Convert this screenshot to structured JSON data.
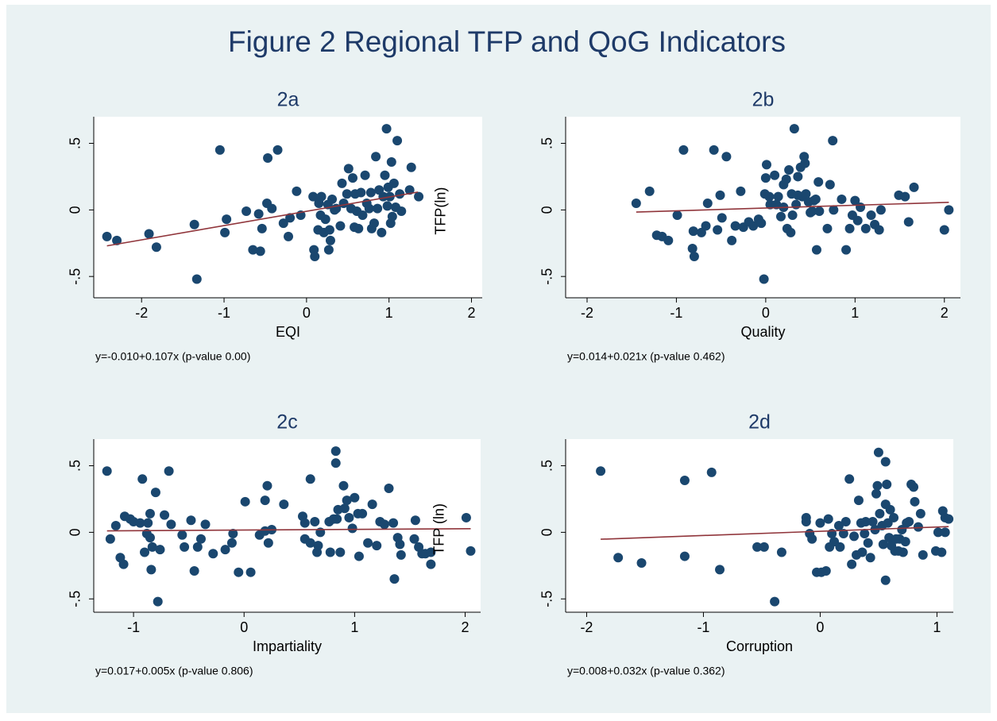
{
  "title": "Figure 2 Regional TFP and QoG Indicators",
  "chart_data": [
    {
      "type": "scatter",
      "title": "2a",
      "xlabel": "EQI",
      "ylabel": "TFP(ln)",
      "note": "y=-0.010+0.107x  (p-value 0.00)",
      "color": "#1a476f",
      "line_color": "#90353b",
      "xlim": [
        -2.58,
        2.13
      ],
      "ylim": [
        -0.66,
        0.7
      ],
      "xticks": [
        -2,
        -1,
        0,
        1,
        2
      ],
      "yticks": [
        {
          "value": -0.5,
          "label": "-.5"
        },
        0,
        {
          "value": 0.5,
          "label": ".5"
        }
      ],
      "x": [
        -2.42,
        -2.3,
        -1.91,
        -1.82,
        -1.36,
        -1.33,
        -1.05,
        -0.99,
        -0.97,
        -0.73,
        -0.65,
        -0.56,
        -0.54,
        -0.58,
        -0.47,
        -0.35,
        -0.48,
        -0.42,
        -0.28,
        -0.22,
        -0.2,
        -0.12,
        -0.07,
        0.08,
        0.09,
        0.1,
        0.14,
        0.15,
        0.17,
        0.18,
        0.21,
        0.23,
        0.26,
        0.28,
        0.29,
        0.31,
        0.34,
        0.36,
        0.27,
        0.41,
        0.43,
        0.45,
        0.49,
        0.51,
        0.54,
        0.56,
        0.58,
        0.59,
        0.61,
        0.63,
        0.66,
        0.68,
        0.71,
        0.73,
        0.76,
        0.78,
        0.79,
        0.82,
        0.84,
        0.86,
        0.88,
        0.91,
        0.93,
        0.95,
        0.97,
        0.98,
        0.99,
        1.01,
        1.02,
        1.03,
        1.04,
        1.06,
        1.08,
        1.1,
        1.13,
        1.15,
        1.27,
        1.25,
        1.36
      ],
      "values": [
        -0.2,
        -0.23,
        -0.18,
        -0.28,
        -0.11,
        -0.52,
        0.45,
        -0.17,
        -0.07,
        -0.01,
        -0.3,
        -0.31,
        -0.14,
        -0.03,
        0.39,
        0.45,
        0.05,
        0.01,
        -0.1,
        -0.2,
        -0.06,
        0.14,
        -0.04,
        0.1,
        -0.3,
        -0.35,
        -0.15,
        0.05,
        -0.04,
        0.1,
        -0.17,
        -0.07,
        0.04,
        -0.15,
        -0.23,
        0.08,
        0.0,
        0.01,
        -0.3,
        -0.12,
        0.2,
        0.05,
        0.12,
        0.31,
        0.01,
        0.24,
        -0.13,
        0.12,
        -0.01,
        -0.14,
        0.13,
        -0.04,
        0.26,
        0.05,
        0.01,
        0.13,
        -0.14,
        -0.1,
        0.4,
        0.01,
        0.15,
        -0.17,
        0.1,
        0.26,
        0.61,
        0.03,
        0.17,
        0.1,
        -0.1,
        0.36,
        -0.05,
        0.2,
        0.02,
        0.52,
        0.12,
        -0.01,
        0.32,
        0.15,
        0.1
      ],
      "fit": {
        "x": [
          -2.42,
          1.35
        ],
        "y": [
          -0.27,
          0.134
        ]
      }
    },
    {
      "type": "scatter",
      "title": "2b",
      "xlabel": "Quality",
      "note": "y=0.014+0.021x  (p-value 0.462)",
      "color": "#1a476f",
      "line_color": "#90353b",
      "xlim": [
        -2.24,
        2.18
      ],
      "ylim": [
        -0.66,
        0.7
      ],
      "xticks": [
        -2,
        -1,
        0,
        1,
        2
      ],
      "yticks": [
        {
          "value": -0.5,
          "label": "-.5"
        },
        0,
        {
          "value": 0.5,
          "label": ".5"
        }
      ],
      "x": [
        -1.45,
        -1.3,
        -1.22,
        -1.16,
        -1.09,
        -0.99,
        -0.92,
        -0.82,
        -0.8,
        -0.81,
        -0.72,
        -0.67,
        -0.65,
        -0.58,
        -0.51,
        -0.49,
        -0.54,
        -0.44,
        -0.38,
        -0.34,
        -0.28,
        -0.25,
        -0.19,
        -0.14,
        -0.08,
        -0.05,
        -0.02,
        -0.01,
        0.0,
        0.01,
        0.04,
        0.05,
        0.1,
        0.12,
        0.14,
        0.17,
        0.2,
        0.2,
        0.23,
        0.24,
        0.26,
        0.28,
        0.29,
        0.3,
        0.32,
        0.34,
        0.36,
        0.36,
        0.39,
        0.41,
        0.43,
        0.44,
        0.45,
        0.48,
        0.5,
        0.52,
        0.54,
        0.56,
        0.57,
        0.59,
        0.6,
        0.69,
        0.72,
        0.76,
        0.75,
        0.85,
        0.9,
        0.94,
        0.97,
        1.0,
        1.03,
        1.06,
        1.12,
        1.18,
        1.22,
        1.27,
        1.29,
        1.49,
        1.56,
        1.6,
        1.66,
        2.0,
        2.05
      ],
      "values": [
        0.05,
        0.14,
        -0.19,
        -0.2,
        -0.23,
        -0.04,
        0.45,
        -0.29,
        -0.35,
        -0.16,
        -0.17,
        -0.12,
        0.05,
        0.45,
        0.11,
        -0.06,
        -0.15,
        0.4,
        -0.23,
        -0.12,
        0.14,
        -0.13,
        -0.09,
        -0.12,
        -0.07,
        -0.1,
        -0.52,
        0.12,
        0.24,
        0.34,
        0.1,
        0.04,
        0.26,
        0.04,
        0.1,
        -0.05,
        0.02,
        0.19,
        0.23,
        -0.14,
        0.3,
        -0.17,
        0.12,
        -0.04,
        0.61,
        0.04,
        0.11,
        0.25,
        0.32,
        0.1,
        0.4,
        0.35,
        0.12,
        0.06,
        -0.02,
        -0.01,
        0.07,
        0.08,
        -0.3,
        0.21,
        -0.01,
        -0.14,
        0.19,
        0.0,
        0.52,
        0.08,
        -0.3,
        -0.14,
        -0.04,
        0.07,
        -0.08,
        0.02,
        -0.14,
        -0.04,
        -0.11,
        -0.15,
        0.0,
        0.11,
        0.1,
        -0.09,
        0.17,
        -0.15,
        0.0
      ],
      "fit": {
        "x": [
          -1.45,
          2.05
        ],
        "y": [
          -0.016,
          0.057
        ]
      }
    },
    {
      "type": "scatter",
      "title": "2c",
      "xlabel": "Impartiality",
      "ylabel": "TFP (ln)",
      "note": "y=0.017+0.005x  (p-value 0.806)",
      "color": "#1a476f",
      "line_color": "#90353b",
      "xlim": [
        -1.36,
        2.14
      ],
      "ylim": [
        -0.6,
        0.7
      ],
      "xticks": [
        -1,
        0,
        1,
        2
      ],
      "yticks": [
        {
          "value": -0.5,
          "label": "-.5"
        },
        0,
        {
          "value": 0.5,
          "label": ".5"
        }
      ],
      "x": [
        -1.24,
        -1.21,
        -1.16,
        -1.12,
        -1.09,
        -1.08,
        -1.03,
        -1.0,
        -0.94,
        -0.92,
        -0.9,
        -0.88,
        -0.87,
        -0.85,
        -0.85,
        -0.84,
        -0.83,
        -0.8,
        -0.78,
        -0.76,
        -0.72,
        -0.68,
        -0.66,
        -0.56,
        -0.54,
        -0.48,
        -0.45,
        -0.42,
        -0.39,
        -0.35,
        -0.28,
        -0.17,
        -0.11,
        -0.1,
        -0.05,
        0.01,
        0.06,
        0.14,
        0.19,
        0.19,
        0.21,
        0.22,
        0.25,
        0.36,
        0.53,
        0.55,
        0.55,
        0.6,
        0.6,
        0.64,
        0.66,
        0.67,
        0.69,
        0.77,
        0.78,
        0.81,
        0.83,
        0.83,
        0.84,
        0.85,
        0.87,
        0.9,
        0.91,
        0.93,
        0.95,
        0.98,
        1.0,
        1.03,
        1.04,
        1.07,
        1.12,
        1.16,
        1.2,
        1.23,
        1.27,
        1.31,
        1.35,
        1.36,
        1.39,
        1.41,
        1.42,
        1.55,
        1.54,
        1.58,
        1.61,
        1.64,
        1.69,
        1.69,
        2.01,
        2.05
      ],
      "values": [
        0.46,
        -0.05,
        0.05,
        -0.19,
        -0.24,
        0.12,
        0.1,
        0.08,
        0.07,
        0.4,
        -0.15,
        -0.01,
        0.07,
        0.14,
        -0.04,
        -0.28,
        -0.11,
        0.3,
        -0.52,
        -0.13,
        0.13,
        0.46,
        0.06,
        -0.02,
        -0.11,
        0.09,
        -0.29,
        -0.11,
        -0.05,
        0.06,
        -0.16,
        -0.13,
        -0.08,
        -0.01,
        -0.3,
        0.23,
        -0.3,
        -0.02,
        0.01,
        0.24,
        0.35,
        -0.08,
        0.02,
        0.21,
        0.12,
        0.07,
        -0.05,
        0.4,
        -0.08,
        0.08,
        -0.15,
        -0.1,
        0.0,
        0.08,
        -0.15,
        0.1,
        0.61,
        0.52,
        0.1,
        0.17,
        -0.15,
        0.35,
        0.18,
        0.24,
        0.11,
        0.03,
        0.26,
        0.14,
        -0.18,
        0.14,
        -0.08,
        0.21,
        -0.1,
        0.08,
        0.06,
        0.33,
        0.07,
        -0.35,
        -0.04,
        -0.09,
        -0.17,
        0.09,
        -0.05,
        -0.11,
        -0.16,
        -0.16,
        -0.24,
        -0.15,
        0.11,
        -0.14
      ],
      "fit": {
        "x": [
          -1.24,
          2.05
        ],
        "y": [
          0.011,
          0.027
        ]
      }
    },
    {
      "type": "scatter",
      "title": "2d",
      "xlabel": "Corruption",
      "note": "y=0.008+0.032x  (p-value 0.362)",
      "color": "#1a476f",
      "line_color": "#90353b",
      "xlim": [
        -2.18,
        1.14
      ],
      "ylim": [
        -0.6,
        0.7
      ],
      "xticks": [
        -2,
        -1,
        0,
        1
      ],
      "yticks": [
        {
          "value": -0.5,
          "label": "-.5"
        },
        0,
        {
          "value": 0.5,
          "label": ".5"
        }
      ],
      "x": [
        -1.88,
        -1.73,
        -1.53,
        -1.16,
        -1.16,
        -0.93,
        -0.86,
        -0.54,
        -0.48,
        -0.39,
        -0.33,
        -0.12,
        -0.12,
        -0.09,
        -0.07,
        -0.03,
        0.0,
        0.01,
        0.05,
        0.07,
        0.08,
        0.1,
        0.12,
        0.16,
        0.17,
        0.2,
        0.22,
        0.25,
        0.27,
        0.29,
        0.31,
        0.33,
        0.35,
        0.36,
        0.38,
        0.39,
        0.41,
        0.43,
        0.45,
        0.47,
        0.48,
        0.49,
        0.5,
        0.51,
        0.53,
        0.54,
        0.56,
        0.56,
        0.56,
        0.57,
        0.58,
        0.59,
        0.6,
        0.61,
        0.63,
        0.64,
        0.65,
        0.67,
        0.68,
        0.7,
        0.71,
        0.73,
        0.74,
        0.76,
        0.78,
        0.8,
        0.81,
        0.84,
        0.86,
        0.88,
        0.99,
        1.01,
        1.04,
        1.05,
        1.07,
        1.07,
        1.1
      ],
      "values": [
        0.46,
        -0.19,
        -0.23,
        0.39,
        -0.18,
        0.45,
        -0.28,
        -0.11,
        -0.11,
        -0.52,
        -0.15,
        0.11,
        0.08,
        -0.01,
        -0.05,
        -0.3,
        0.07,
        -0.3,
        -0.29,
        0.1,
        -0.11,
        -0.01,
        -0.07,
        0.05,
        -0.11,
        -0.01,
        0.08,
        0.4,
        -0.24,
        -0.03,
        -0.17,
        0.24,
        0.07,
        -0.15,
        -0.01,
        0.08,
        -0.08,
        -0.19,
        0.08,
        0.02,
        0.29,
        0.35,
        0.6,
        0.14,
        0.05,
        -0.09,
        0.21,
        0.53,
        -0.36,
        0.36,
        0.07,
        -0.04,
        0.17,
        -0.1,
        0.11,
        -0.14,
        -0.05,
        -0.14,
        -0.05,
        0.02,
        -0.15,
        -0.07,
        0.07,
        0.08,
        0.36,
        0.34,
        0.23,
        0.04,
        0.14,
        -0.17,
        -0.14,
        0.0,
        -0.15,
        0.16,
        0.0,
        0.11,
        0.1
      ],
      "fit": {
        "x": [
          -1.88,
          1.1
        ],
        "y": [
          -0.052,
          0.043
        ]
      }
    }
  ]
}
